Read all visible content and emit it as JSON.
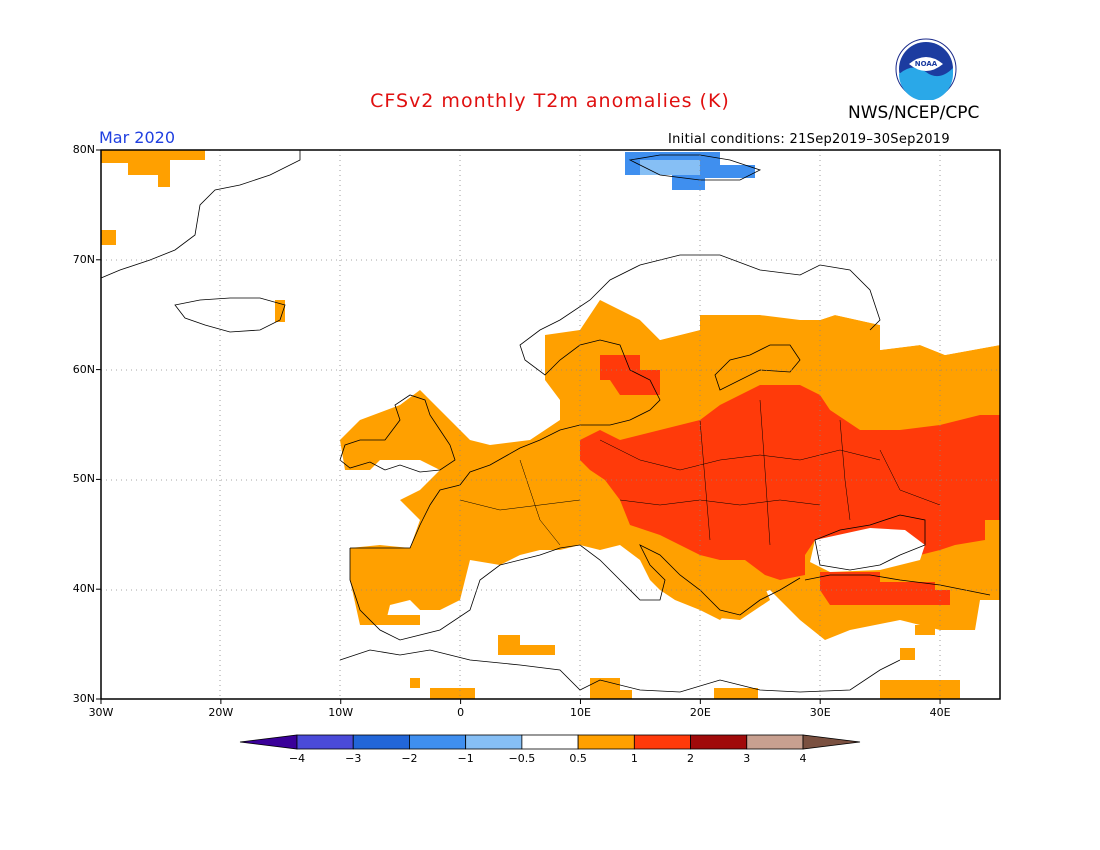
{
  "title": "CFSv2 monthly T2m anomalies (K)",
  "agency": "NWS/NCEP/CPC",
  "logo_text": "NOAA",
  "month": "Mar 2020",
  "initial_conditions": "Initial conditions: 21Sep2019–30Sep2019",
  "lat_ticks": [
    {
      "label": "80N",
      "value": 80
    },
    {
      "label": "70N",
      "value": 70
    },
    {
      "label": "60N",
      "value": 60
    },
    {
      "label": "50N",
      "value": 50
    },
    {
      "label": "40N",
      "value": 40
    },
    {
      "label": "30N",
      "value": 30
    }
  ],
  "lon_ticks": [
    {
      "label": "30W",
      "value": -30
    },
    {
      "label": "20W",
      "value": -20
    },
    {
      "label": "10W",
      "value": -10
    },
    {
      "label": "0",
      "value": 0
    },
    {
      "label": "10E",
      "value": 10
    },
    {
      "label": "20E",
      "value": 20
    },
    {
      "label": "30E",
      "value": 30
    },
    {
      "label": "40E",
      "value": 40
    }
  ],
  "extent": {
    "lon_min": -30,
    "lon_max": 45,
    "lat_min": 30,
    "lat_max": 80
  },
  "colorbar": {
    "boundaries": [
      "−4",
      "−3",
      "−2",
      "−1",
      "−0.5",
      "0.5",
      "1",
      "2",
      "3",
      "4"
    ],
    "colors": [
      "#3a0099",
      "#4a4ad8",
      "#2266d8",
      "#3f8fef",
      "#86bff5",
      "#ffffff",
      "#ffa000",
      "#ff3a0a",
      "#a00a0a",
      "#c8a090",
      "#7a5040"
    ]
  }
}
